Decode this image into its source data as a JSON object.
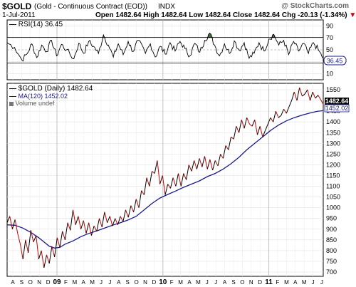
{
  "header": {
    "symbol": "$GOLD",
    "description": "(Gold - Continuous Contract (EOD))",
    "exchange": "INDX",
    "watermark": "@ StockCharts.com",
    "date": "1-Jul-2011",
    "quote_prefix": "Open",
    "open": "1482.64",
    "high_label": "High",
    "high": "1482.64",
    "low_label": "Low",
    "low": "1482.64",
    "close_label": "Close",
    "close": "1482.64",
    "chg_label": "Chg",
    "chg": "-20.13 (-1.34%)",
    "chg_marker": "▼"
  },
  "colors": {
    "price_line": "#000000",
    "price_down": "#cc0000",
    "ma_line": "#1a1a8c",
    "overbought_fill": "#2e6b2e",
    "oversold_fill": "#1a1a8c",
    "reference_line": "#000000"
  },
  "chart_data": [
    {
      "type": "line",
      "name": "rsi_panel",
      "legend": "RSI(14) 36.45",
      "last_value_label": "36.45",
      "ylim": [
        0,
        100
      ],
      "y_ticks": [
        "90",
        "70",
        "50",
        "30",
        "10"
      ],
      "overbought": 70,
      "oversold": 30,
      "anchors": [
        [
          0,
          62
        ],
        [
          3,
          54
        ],
        [
          6,
          33
        ],
        [
          8,
          43
        ],
        [
          10,
          60
        ],
        [
          12,
          37
        ],
        [
          14,
          58
        ],
        [
          16,
          47
        ],
        [
          18,
          66
        ],
        [
          20,
          40
        ],
        [
          22,
          59
        ],
        [
          24,
          50
        ],
        [
          27,
          35
        ],
        [
          29,
          61
        ],
        [
          31,
          44
        ],
        [
          33,
          64
        ],
        [
          35,
          56
        ],
        [
          37,
          44
        ],
        [
          39,
          75
        ],
        [
          41,
          58
        ],
        [
          43,
          38
        ],
        [
          45,
          60
        ],
        [
          47,
          42
        ],
        [
          49,
          64
        ],
        [
          51,
          47
        ],
        [
          53,
          66
        ],
        [
          56,
          44
        ],
        [
          58,
          60
        ],
        [
          60,
          38
        ],
        [
          62,
          56
        ],
        [
          64,
          43
        ],
        [
          66,
          62
        ],
        [
          68,
          48
        ],
        [
          70,
          64
        ],
        [
          72,
          52
        ],
        [
          74,
          40
        ],
        [
          76,
          61
        ],
        [
          78,
          46
        ],
        [
          80,
          66
        ],
        [
          82,
          78
        ],
        [
          84,
          58
        ],
        [
          86,
          40
        ],
        [
          88,
          60
        ],
        [
          90,
          44
        ],
        [
          92,
          65
        ],
        [
          94,
          49
        ],
        [
          96,
          62
        ],
        [
          98,
          36
        ],
        [
          100,
          44
        ],
        [
          102,
          62
        ],
        [
          104,
          48
        ],
        [
          106,
          68
        ],
        [
          108,
          76
        ],
        [
          110,
          58
        ],
        [
          112,
          66
        ],
        [
          114,
          42
        ],
        [
          116,
          64
        ],
        [
          118,
          48
        ],
        [
          120,
          61
        ],
        [
          122,
          44
        ],
        [
          124,
          62
        ],
        [
          126,
          50
        ],
        [
          128,
          36
        ]
      ],
      "x_domain": [
        0,
        128
      ]
    },
    {
      "type": "line",
      "name": "price_panel",
      "series": [
        {
          "name": "$GOLD (Daily) 1482.64",
          "values": [
            [
              0,
              930
            ],
            [
              1,
              960
            ],
            [
              2,
              900
            ],
            [
              3,
              945
            ],
            [
              4,
              880
            ],
            [
              5,
              830
            ],
            [
              6,
              760
            ],
            [
              7,
              850
            ],
            [
              8,
              790
            ],
            [
              9,
              895
            ],
            [
              10,
              840
            ],
            [
              11,
              870
            ],
            [
              12,
              760
            ],
            [
              13,
              800
            ],
            [
              14,
              720
            ],
            [
              15,
              780
            ],
            [
              16,
              740
            ],
            [
              17,
              820
            ],
            [
              18,
              770
            ],
            [
              19,
              860
            ],
            [
              20,
              815
            ],
            [
              21,
              890
            ],
            [
              22,
              850
            ],
            [
              23,
              930
            ],
            [
              24,
              895
            ],
            [
              25,
              990
            ],
            [
              26,
              920
            ],
            [
              27,
              960
            ],
            [
              28,
              900
            ],
            [
              29,
              940
            ],
            [
              30,
              880
            ],
            [
              31,
              930
            ],
            [
              32,
              870
            ],
            [
              33,
              915
            ],
            [
              34,
              890
            ],
            [
              35,
              950
            ],
            [
              36,
              910
            ],
            [
              37,
              980
            ],
            [
              38,
              930
            ],
            [
              39,
              960
            ],
            [
              40,
              915
            ],
            [
              41,
              950
            ],
            [
              42,
              920
            ],
            [
              43,
              960
            ],
            [
              44,
              935
            ],
            [
              45,
              990
            ],
            [
              46,
              955
            ],
            [
              47,
              1010
            ],
            [
              48,
              980
            ],
            [
              49,
              1040
            ],
            [
              50,
              1000
            ],
            [
              51,
              1080
            ],
            [
              52,
              1060
            ],
            [
              53,
              1140
            ],
            [
              54,
              1100
            ],
            [
              55,
              1170
            ],
            [
              56,
              1160
            ],
            [
              57,
              1220
            ],
            [
              58,
              1110
            ],
            [
              59,
              1150
            ],
            [
              60,
              1060
            ],
            [
              61,
              1110
            ],
            [
              62,
              1090
            ],
            [
              63,
              1140
            ],
            [
              64,
              1100
            ],
            [
              65,
              1160
            ],
            [
              66,
              1100
            ],
            [
              67,
              1160
            ],
            [
              68,
              1130
            ],
            [
              69,
              1200
            ],
            [
              70,
              1170
            ],
            [
              71,
              1220
            ],
            [
              72,
              1180
            ],
            [
              73,
              1230
            ],
            [
              74,
              1190
            ],
            [
              75,
              1240
            ],
            [
              76,
              1180
            ],
            [
              77,
              1225
            ],
            [
              78,
              1175
            ],
            [
              79,
              1220
            ],
            [
              80,
              1195
            ],
            [
              81,
              1250
            ],
            [
              82,
              1230
            ],
            [
              83,
              1290
            ],
            [
              84,
              1270
            ],
            [
              85,
              1330
            ],
            [
              86,
              1320
            ],
            [
              87,
              1380
            ],
            [
              88,
              1350
            ],
            [
              89,
              1410
            ],
            [
              90,
              1370
            ],
            [
              91,
              1420
            ],
            [
              92,
              1390
            ],
            [
              93,
              1380
            ],
            [
              94,
              1410
            ],
            [
              95,
              1340
            ],
            [
              96,
              1380
            ],
            [
              97,
              1330
            ],
            [
              98,
              1360
            ],
            [
              99,
              1390
            ],
            [
              100,
              1420
            ],
            [
              101,
              1400
            ],
            [
              102,
              1450
            ],
            [
              103,
              1420
            ],
            [
              104,
              1430
            ],
            [
              105,
              1460
            ],
            [
              106,
              1440
            ],
            [
              107,
              1470
            ],
            [
              108,
              1500
            ],
            [
              109,
              1540
            ],
            [
              110,
              1500
            ],
            [
              111,
              1560
            ],
            [
              112,
              1520
            ],
            [
              113,
              1530
            ],
            [
              114,
              1550
            ],
            [
              115,
              1500
            ],
            [
              116,
              1540
            ],
            [
              117,
              1510
            ],
            [
              118,
              1525
            ],
            [
              119,
              1505
            ],
            [
              120,
              1482.64
            ]
          ]
        },
        {
          "name": "MA(120) 1452.02",
          "values": [
            [
              0,
              920
            ],
            [
              3,
              918
            ],
            [
              6,
              905
            ],
            [
              9,
              885
            ],
            [
              12,
              860
            ],
            [
              14,
              840
            ],
            [
              16,
              820
            ],
            [
              18,
              812
            ],
            [
              20,
              815
            ],
            [
              22,
              830
            ],
            [
              25,
              845
            ],
            [
              28,
              865
            ],
            [
              31,
              880
            ],
            [
              34,
              892
            ],
            [
              37,
              905
            ],
            [
              40,
              918
            ],
            [
              43,
              930
            ],
            [
              46,
              943
            ],
            [
              49,
              960
            ],
            [
              52,
              990
            ],
            [
              55,
              1020
            ],
            [
              58,
              1045
            ],
            [
              61,
              1062
            ],
            [
              64,
              1078
            ],
            [
              67,
              1095
            ],
            [
              70,
              1110
            ],
            [
              73,
              1125
            ],
            [
              76,
              1145
            ],
            [
              79,
              1160
            ],
            [
              82,
              1180
            ],
            [
              85,
              1205
            ],
            [
              88,
              1235
            ],
            [
              91,
              1270
            ],
            [
              94,
              1300
            ],
            [
              97,
              1330
            ],
            [
              100,
              1360
            ],
            [
              103,
              1385
            ],
            [
              106,
              1405
            ],
            [
              109,
              1420
            ],
            [
              112,
              1432
            ],
            [
              115,
              1442
            ],
            [
              118,
              1450
            ],
            [
              120,
              1452.02
            ]
          ]
        }
      ],
      "volume_legend": "Volume undef",
      "ylim": [
        680,
        1580
      ],
      "y_ticks": [
        "1550",
        "1500",
        "1450",
        "1400",
        "1350",
        "1300",
        "1250",
        "1200",
        "1150",
        "1100",
        "1050",
        "1000",
        "950",
        "900",
        "850",
        "800",
        "750",
        "700"
      ],
      "y_tick_values": [
        1550,
        1500,
        1450,
        1400,
        1350,
        1300,
        1250,
        1200,
        1150,
        1100,
        1050,
        1000,
        950,
        900,
        850,
        800,
        750,
        700
      ],
      "last_price_label": "1482.64",
      "last_ma_label": "1452.02",
      "x_domain": [
        0,
        120
      ],
      "x_ticks": [
        "A",
        "S",
        "O",
        "N",
        "D",
        "09",
        "F",
        "M",
        "A",
        "M",
        "J",
        "J",
        "A",
        "S",
        "O",
        "N",
        "D",
        "10",
        "F",
        "M",
        "A",
        "M",
        "J",
        "J",
        "A",
        "S",
        "O",
        "N",
        "D",
        "11",
        "F",
        "M",
        "A",
        "M",
        "J",
        "J"
      ],
      "year_ticks": [
        "09",
        "10",
        "11"
      ]
    }
  ]
}
